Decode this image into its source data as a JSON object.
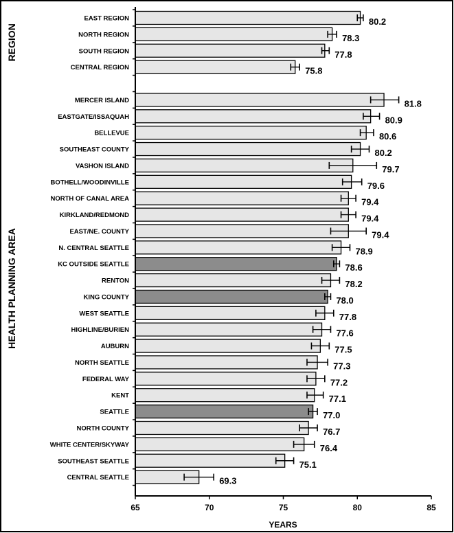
{
  "chart_data": {
    "type": "bar",
    "orientation": "horizontal",
    "xlabel": "YEARS",
    "xlim": [
      65,
      85
    ],
    "xticks": [
      "65",
      "70",
      "75",
      "80",
      "85"
    ],
    "colors": {
      "normal": "#e6e6e6",
      "highlight": "#8c8c8c",
      "outline": "#000000"
    },
    "groups": [
      {
        "label": "REGION",
        "bars": [
          {
            "category": "EAST REGION",
            "value": 80.2,
            "value_label": "80.2",
            "ci": [
              80.0,
              80.4
            ],
            "highlight": false
          },
          {
            "category": "NORTH REGION",
            "value": 78.3,
            "value_label": "78.3",
            "ci": [
              78.0,
              78.6
            ],
            "highlight": false
          },
          {
            "category": "SOUTH REGION",
            "value": 77.8,
            "value_label": "77.8",
            "ci": [
              77.6,
              78.1
            ],
            "highlight": false
          },
          {
            "category": "CENTRAL REGION",
            "value": 75.8,
            "value_label": "75.8",
            "ci": [
              75.5,
              76.1
            ],
            "highlight": false
          }
        ]
      },
      {
        "label": "HEALTH PLANNING AREA",
        "bars": [
          {
            "category": "MERCER ISLAND",
            "value": 81.8,
            "value_label": "81.8",
            "ci": [
              80.9,
              82.8
            ],
            "highlight": false
          },
          {
            "category": "EASTGATE/ISSAQUAH",
            "value": 80.9,
            "value_label": "80.9",
            "ci": [
              80.4,
              81.5
            ],
            "highlight": false
          },
          {
            "category": "BELLEVUE",
            "value": 80.6,
            "value_label": "80.6",
            "ci": [
              80.2,
              81.1
            ],
            "highlight": false
          },
          {
            "category": "SOUTHEAST COUNTY",
            "value": 80.2,
            "value_label": "80.2",
            "ci": [
              79.6,
              80.8
            ],
            "highlight": false
          },
          {
            "category": "VASHON ISLAND",
            "value": 79.7,
            "value_label": "79.7",
            "ci": [
              78.1,
              81.3
            ],
            "highlight": false
          },
          {
            "category": "BOTHELL/WOODINVILLE",
            "value": 79.6,
            "value_label": "79.6",
            "ci": [
              79.0,
              80.3
            ],
            "highlight": false
          },
          {
            "category": "NORTH OF CANAL AREA",
            "value": 79.4,
            "value_label": "79.4",
            "ci": [
              78.9,
              79.9
            ],
            "highlight": false
          },
          {
            "category": "KIRKLAND/REDMOND",
            "value": 79.4,
            "value_label": "79.4",
            "ci": [
              78.9,
              79.9
            ],
            "highlight": false
          },
          {
            "category": "EAST/NE. COUNTY",
            "value": 79.4,
            "value_label": "79.4",
            "ci": [
              78.2,
              80.6
            ],
            "highlight": false
          },
          {
            "category": "N. CENTRAL SEATTLE",
            "value": 78.9,
            "value_label": "78.9",
            "ci": [
              78.3,
              79.5
            ],
            "highlight": false
          },
          {
            "category": "KC OUTSIDE SEATTLE",
            "value": 78.6,
            "value_label": "78.6",
            "ci": [
              78.4,
              78.8
            ],
            "highlight": true
          },
          {
            "category": "RENTON",
            "value": 78.2,
            "value_label": "78.2",
            "ci": [
              77.6,
              78.8
            ],
            "highlight": false
          },
          {
            "category": "KING COUNTY",
            "value": 78.0,
            "value_label": "78.0",
            "ci": [
              77.8,
              78.2
            ],
            "highlight": true
          },
          {
            "category": "WEST SEATTLE",
            "value": 77.8,
            "value_label": "77.8",
            "ci": [
              77.2,
              78.4
            ],
            "highlight": false
          },
          {
            "category": "HIGHLINE/BURIEN",
            "value": 77.6,
            "value_label": "77.6",
            "ci": [
              77.0,
              78.2
            ],
            "highlight": false
          },
          {
            "category": "AUBURN",
            "value": 77.5,
            "value_label": "77.5",
            "ci": [
              76.9,
              78.1
            ],
            "highlight": false
          },
          {
            "category": "NORTH SEATTLE",
            "value": 77.3,
            "value_label": "77.3",
            "ci": [
              76.6,
              78.0
            ],
            "highlight": false
          },
          {
            "category": "FEDERAL WAY",
            "value": 77.2,
            "value_label": "77.2",
            "ci": [
              76.6,
              77.8
            ],
            "highlight": false
          },
          {
            "category": "KENT",
            "value": 77.1,
            "value_label": "77.1",
            "ci": [
              76.6,
              77.7
            ],
            "highlight": false
          },
          {
            "category": "SEATTLE",
            "value": 77.0,
            "value_label": "77.0",
            "ci": [
              76.7,
              77.3
            ],
            "highlight": true
          },
          {
            "category": "NORTH COUNTY",
            "value": 76.7,
            "value_label": "76.7",
            "ci": [
              76.1,
              77.3
            ],
            "highlight": false
          },
          {
            "category": "WHITE CENTER/SKYWAY",
            "value": 76.4,
            "value_label": "76.4",
            "ci": [
              75.7,
              77.1
            ],
            "highlight": false
          },
          {
            "category": "SOUTHEAST SEATTLE",
            "value": 75.1,
            "value_label": "75.1",
            "ci": [
              74.5,
              75.7
            ],
            "highlight": false
          },
          {
            "category": "CENTRAL SEATTLE",
            "value": 69.3,
            "value_label": "69.3",
            "ci": [
              68.3,
              70.3
            ],
            "highlight": false
          }
        ]
      }
    ]
  }
}
